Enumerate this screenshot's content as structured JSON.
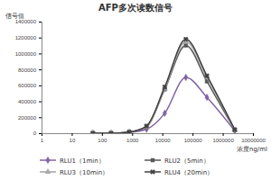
{
  "chart_data": {
    "type": "line",
    "title": "AFP多次读数信号",
    "x_label": "浓度ng/ml",
    "y_label": "信号值",
    "log": "x",
    "x": [
      50,
      200,
      800,
      3000,
      12000,
      60000,
      300000,
      2500000
    ],
    "series": [
      {
        "name": "RLU1（1min）",
        "color": "#8064a2",
        "marker": "diamond",
        "values": [
          0,
          0,
          10000,
          50000,
          250000,
          700000,
          450000,
          30000
        ]
      },
      {
        "name": "RLU2（5min）",
        "color": "#595959",
        "marker": "square",
        "values": [
          0,
          0,
          15000,
          80000,
          550000,
          1100000,
          650000,
          40000
        ]
      },
      {
        "name": "RLU3（10min）",
        "color": "#a6a6a6",
        "marker": "triangle",
        "values": [
          0,
          0,
          15000,
          80000,
          560000,
          1150000,
          700000,
          40000
        ]
      },
      {
        "name": "RLU4（20min）",
        "color": "#404040",
        "marker": "x",
        "values": [
          0,
          0,
          15000,
          90000,
          580000,
          1180000,
          720000,
          45000
        ]
      }
    ],
    "line_style": "smooth",
    "xlim": [
      1,
      10000000
    ],
    "xticks": [
      1,
      10,
      100,
      1000,
      10000,
      100000,
      1000000,
      10000000
    ],
    "ylim": [
      0,
      1400000
    ],
    "yticks": [
      0,
      200000,
      400000,
      600000,
      800000,
      1000000,
      1200000,
      1400000
    ],
    "grid": false,
    "legend": "bottom"
  }
}
